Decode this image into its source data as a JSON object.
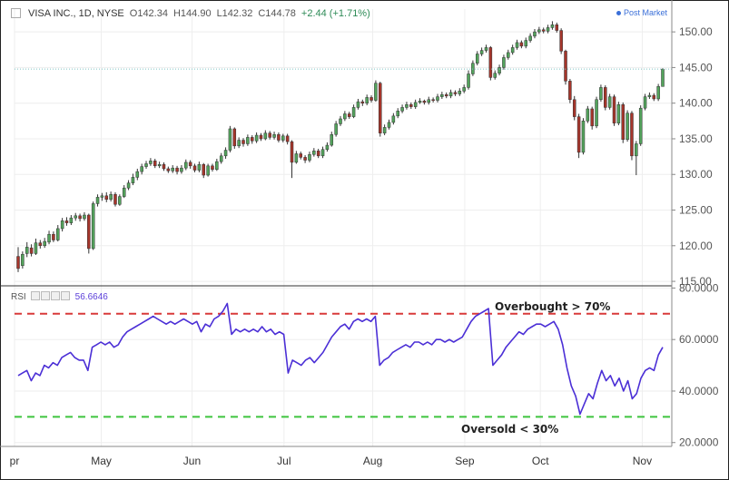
{
  "header": {
    "symbol": "VISA INC., 1D, NYSE",
    "open": "O142.34",
    "high": "H144.90",
    "low": "L142.32",
    "close": "C144.78",
    "change": "+2.44 (+1.71%)",
    "post_market": "Post Market"
  },
  "rsi_header": {
    "label": "RSI",
    "value": "56.6646"
  },
  "annotations": {
    "overbought": "Overbought > 70%",
    "oversold": "Oversold < 30%"
  },
  "colors": {
    "up": "#53a35c",
    "down": "#a5352b",
    "rsi_line": "#4b2fd6",
    "overbought_line": "#d93a3a",
    "oversold_line": "#3ec43e",
    "last_price_line": "#7fc3c3",
    "grid": "#eeeeee",
    "axis_text": "#555555"
  },
  "chart_data": [
    {
      "type": "candlestick",
      "title": "",
      "y_axis_ticks": [
        "150.00",
        "145.00",
        "140.00",
        "135.00",
        "130.00",
        "125.00",
        "120.00",
        "115.00"
      ],
      "ylim": [
        114.5,
        153.2
      ],
      "x_axis_ticks": [
        "Apr",
        "May",
        "Jun",
        "Jul",
        "Aug",
        "Sep",
        "Oct",
        "Nov"
      ],
      "last_price": 144.78,
      "candles": [
        [
          118.5,
          116.8,
          119.8,
          116.3
        ],
        [
          117.2,
          118.8,
          119.2,
          116.8
        ],
        [
          118.9,
          119.8,
          120.5,
          118.4
        ],
        [
          119.7,
          118.9,
          120.2,
          118.5
        ],
        [
          118.9,
          120.4,
          121.0,
          118.7
        ],
        [
          120.4,
          120.0,
          120.8,
          119.6
        ],
        [
          120.0,
          120.6,
          121.1,
          119.7
        ],
        [
          120.5,
          121.6,
          122.1,
          120.2
        ],
        [
          121.6,
          120.8,
          122.0,
          120.5
        ],
        [
          120.8,
          122.4,
          122.9,
          120.6
        ],
        [
          122.4,
          123.5,
          123.9,
          122.0
        ],
        [
          123.5,
          123.2,
          124.0,
          122.8
        ],
        [
          123.2,
          123.9,
          124.3,
          122.9
        ],
        [
          123.9,
          124.2,
          124.6,
          123.5
        ],
        [
          124.2,
          123.8,
          124.5,
          123.4
        ],
        [
          123.8,
          124.3,
          124.7,
          123.5
        ],
        [
          124.3,
          119.6,
          124.5,
          118.9
        ],
        [
          119.6,
          125.9,
          126.2,
          119.4
        ],
        [
          125.9,
          126.8,
          127.2,
          125.5
        ],
        [
          126.8,
          127.0,
          127.4,
          126.3
        ],
        [
          127.0,
          126.5,
          127.5,
          126.1
        ],
        [
          126.5,
          127.2,
          127.6,
          126.2
        ],
        [
          127.2,
          125.8,
          127.5,
          125.5
        ],
        [
          125.8,
          126.9,
          127.2,
          125.6
        ],
        [
          126.9,
          128.1,
          128.5,
          126.7
        ],
        [
          128.1,
          128.8,
          129.2,
          127.8
        ],
        [
          128.8,
          129.6,
          130.1,
          128.5
        ],
        [
          129.6,
          130.4,
          130.8,
          129.2
        ],
        [
          130.4,
          131.1,
          131.5,
          130.0
        ],
        [
          131.1,
          131.5,
          131.9,
          130.8
        ],
        [
          131.5,
          131.9,
          132.3,
          131.2
        ],
        [
          131.9,
          131.2,
          132.2,
          130.9
        ],
        [
          131.2,
          131.4,
          131.8,
          130.9
        ],
        [
          131.4,
          130.8,
          131.7,
          130.5
        ],
        [
          130.8,
          130.5,
          131.1,
          130.2
        ],
        [
          130.5,
          130.9,
          131.3,
          130.2
        ],
        [
          130.9,
          130.4,
          131.2,
          130.0
        ],
        [
          130.4,
          130.9,
          131.3,
          130.1
        ],
        [
          130.9,
          131.7,
          132.1,
          130.6
        ],
        [
          131.7,
          131.2,
          132.0,
          130.8
        ],
        [
          131.2,
          130.6,
          131.5,
          130.3
        ],
        [
          130.6,
          131.4,
          131.8,
          130.3
        ],
        [
          131.4,
          129.9,
          131.6,
          129.5
        ],
        [
          129.9,
          131.2,
          131.5,
          129.7
        ],
        [
          131.2,
          130.7,
          131.5,
          130.4
        ],
        [
          130.7,
          131.8,
          132.2,
          130.5
        ],
        [
          131.8,
          132.6,
          133.0,
          131.5
        ],
        [
          132.6,
          133.4,
          133.8,
          132.2
        ],
        [
          133.4,
          136.4,
          136.8,
          133.1
        ],
        [
          136.4,
          134.0,
          136.6,
          133.6
        ],
        [
          134.0,
          134.8,
          135.2,
          133.7
        ],
        [
          134.8,
          134.3,
          135.1,
          133.9
        ],
        [
          134.3,
          135.2,
          135.6,
          134.0
        ],
        [
          135.2,
          134.7,
          135.5,
          134.3
        ],
        [
          134.7,
          135.5,
          135.9,
          134.4
        ],
        [
          135.5,
          135.0,
          135.8,
          134.7
        ],
        [
          135.0,
          135.8,
          136.2,
          134.8
        ],
        [
          135.8,
          135.2,
          136.1,
          134.9
        ],
        [
          135.2,
          135.6,
          136.0,
          134.9
        ],
        [
          135.6,
          134.8,
          135.9,
          134.5
        ],
        [
          134.8,
          135.4,
          135.7,
          134.5
        ],
        [
          135.4,
          134.6,
          135.7,
          134.2
        ],
        [
          134.6,
          131.7,
          134.8,
          129.5
        ],
        [
          131.7,
          132.9,
          133.3,
          131.5
        ],
        [
          132.9,
          132.4,
          133.2,
          132.1
        ],
        [
          132.4,
          132.0,
          132.7,
          131.6
        ],
        [
          132.0,
          132.8,
          133.2,
          131.7
        ],
        [
          132.8,
          133.3,
          133.7,
          132.5
        ],
        [
          133.3,
          132.6,
          133.6,
          132.3
        ],
        [
          132.6,
          133.5,
          133.9,
          132.3
        ],
        [
          133.5,
          134.1,
          134.5,
          133.2
        ],
        [
          134.1,
          135.6,
          136.0,
          133.9
        ],
        [
          135.6,
          137.1,
          137.5,
          135.3
        ],
        [
          137.1,
          137.8,
          138.2,
          136.8
        ],
        [
          137.8,
          138.5,
          138.9,
          137.5
        ],
        [
          138.5,
          138.1,
          138.8,
          137.8
        ],
        [
          138.1,
          139.4,
          139.8,
          137.9
        ],
        [
          139.4,
          140.2,
          140.6,
          139.1
        ],
        [
          140.2,
          140.0,
          140.5,
          139.6
        ],
        [
          140.0,
          140.8,
          141.2,
          139.7
        ],
        [
          140.8,
          140.4,
          141.1,
          140.1
        ],
        [
          140.4,
          142.8,
          143.2,
          140.2
        ],
        [
          142.8,
          135.8,
          143.0,
          135.3
        ],
        [
          135.8,
          136.6,
          137.0,
          135.5
        ],
        [
          136.6,
          137.3,
          137.7,
          136.3
        ],
        [
          137.3,
          138.2,
          138.6,
          137.0
        ],
        [
          138.2,
          138.9,
          139.3,
          137.9
        ],
        [
          138.9,
          139.4,
          139.8,
          138.6
        ],
        [
          139.4,
          139.8,
          140.2,
          139.1
        ],
        [
          139.8,
          139.5,
          140.1,
          139.2
        ],
        [
          139.5,
          140.1,
          140.5,
          139.2
        ],
        [
          140.1,
          140.3,
          140.7,
          139.9
        ],
        [
          140.3,
          140.1,
          140.5,
          139.8
        ],
        [
          140.1,
          140.5,
          140.9,
          139.8
        ],
        [
          140.5,
          140.4,
          140.8,
          140.1
        ],
        [
          140.4,
          140.9,
          141.3,
          140.1
        ],
        [
          140.9,
          141.2,
          141.6,
          140.6
        ],
        [
          141.2,
          141.0,
          141.5,
          140.7
        ],
        [
          141.0,
          141.5,
          141.9,
          140.7
        ],
        [
          141.5,
          141.3,
          141.8,
          141.0
        ],
        [
          141.3,
          141.7,
          142.1,
          141.0
        ],
        [
          141.7,
          142.2,
          142.6,
          141.4
        ],
        [
          142.2,
          144.1,
          144.6,
          141.9
        ],
        [
          144.1,
          145.6,
          146.0,
          143.8
        ],
        [
          145.6,
          146.9,
          147.3,
          145.3
        ],
        [
          146.9,
          147.4,
          147.8,
          146.6
        ],
        [
          147.4,
          147.8,
          148.2,
          147.1
        ],
        [
          147.8,
          143.6,
          148.0,
          143.2
        ],
        [
          143.6,
          144.2,
          144.6,
          143.3
        ],
        [
          144.2,
          145.0,
          145.4,
          143.9
        ],
        [
          145.0,
          146.4,
          146.8,
          144.7
        ],
        [
          146.4,
          147.1,
          147.5,
          146.1
        ],
        [
          147.1,
          147.8,
          148.2,
          146.8
        ],
        [
          147.8,
          148.5,
          148.9,
          147.5
        ],
        [
          148.5,
          148.0,
          148.8,
          147.7
        ],
        [
          148.0,
          148.8,
          149.2,
          147.7
        ],
        [
          148.8,
          149.4,
          149.8,
          148.5
        ],
        [
          149.4,
          150.0,
          150.4,
          149.1
        ],
        [
          150.0,
          150.3,
          150.7,
          149.7
        ],
        [
          150.3,
          150.1,
          150.6,
          149.8
        ],
        [
          150.1,
          150.6,
          151.0,
          149.8
        ],
        [
          150.6,
          151.0,
          151.5,
          150.3
        ],
        [
          151.0,
          150.2,
          151.3,
          149.9
        ],
        [
          150.2,
          147.3,
          150.5,
          146.9
        ],
        [
          147.3,
          143.1,
          147.5,
          142.6
        ],
        [
          143.1,
          140.5,
          143.4,
          140.0
        ],
        [
          140.5,
          138.1,
          141.0,
          137.6
        ],
        [
          138.1,
          133.1,
          138.5,
          132.3
        ],
        [
          133.1,
          137.5,
          137.9,
          132.8
        ],
        [
          137.5,
          139.2,
          139.6,
          137.2
        ],
        [
          139.2,
          136.8,
          139.5,
          136.3
        ],
        [
          136.8,
          140.5,
          140.9,
          136.5
        ],
        [
          140.5,
          142.2,
          142.6,
          140.2
        ],
        [
          142.2,
          139.4,
          142.5,
          139.0
        ],
        [
          139.4,
          140.9,
          141.3,
          139.1
        ],
        [
          140.9,
          137.2,
          141.2,
          136.8
        ],
        [
          137.2,
          139.8,
          140.2,
          136.9
        ],
        [
          139.8,
          134.9,
          140.1,
          134.4
        ],
        [
          134.9,
          138.6,
          139.0,
          134.6
        ],
        [
          138.6,
          132.6,
          138.9,
          132.0
        ],
        [
          132.6,
          134.3,
          134.7,
          129.9
        ],
        [
          134.3,
          139.3,
          139.7,
          134.0
        ],
        [
          139.3,
          140.9,
          141.3,
          139.0
        ],
        [
          140.9,
          141.1,
          141.5,
          140.6
        ],
        [
          141.1,
          140.6,
          141.4,
          140.3
        ],
        [
          140.6,
          142.34,
          142.7,
          140.3
        ],
        [
          142.34,
          144.78,
          144.9,
          142.32
        ]
      ]
    },
    {
      "type": "line",
      "title": "",
      "series_name": "RSI",
      "y_axis_ticks": [
        "80.0000",
        "60.0000",
        "40.0000",
        "20.0000"
      ],
      "ylim": [
        18.5,
        80.5
      ],
      "overbought_level": 70,
      "oversold_level": 30,
      "values": [
        46,
        47,
        48,
        44,
        47,
        46,
        50,
        49,
        51,
        50,
        53,
        54,
        55,
        53,
        52,
        52,
        48,
        57,
        58,
        59,
        58,
        59,
        57,
        58,
        61,
        63,
        64,
        65,
        66,
        67,
        68,
        69,
        68,
        67,
        66,
        67,
        66,
        67,
        68,
        67,
        66,
        67,
        63,
        66,
        65,
        68,
        69,
        71,
        74,
        62,
        64,
        63,
        64,
        63,
        64,
        63,
        65,
        63,
        64,
        62,
        63,
        62,
        47,
        52,
        51,
        50,
        52,
        53,
        51,
        53,
        55,
        58,
        61,
        63,
        65,
        66,
        64,
        67,
        68,
        67,
        68,
        67,
        69,
        50,
        52,
        53,
        55,
        56,
        57,
        58,
        57,
        59,
        59,
        58,
        59,
        58,
        60,
        60,
        59,
        60,
        59,
        60,
        61,
        64,
        67,
        69,
        70,
        71,
        72,
        50,
        52,
        54,
        57,
        59,
        61,
        63,
        62,
        64,
        65,
        66,
        66,
        65,
        66,
        67,
        64,
        58,
        49,
        42,
        38,
        31,
        35,
        39,
        37,
        43,
        48,
        44,
        46,
        42,
        45,
        40,
        44,
        37,
        39,
        45,
        48,
        49,
        48,
        54,
        57
      ]
    }
  ]
}
